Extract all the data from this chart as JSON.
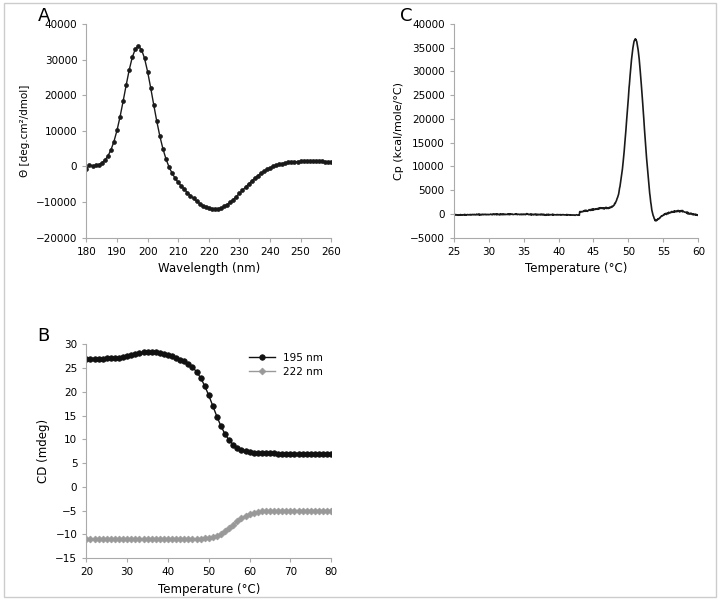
{
  "panel_A": {
    "label": "A",
    "xlabel": "Wavelength (nm)",
    "ylabel": "Θ [deg.cm²/dmol]",
    "xlim": [
      180,
      260
    ],
    "ylim": [
      -20000,
      40000
    ],
    "xticks": [
      180,
      190,
      200,
      210,
      220,
      230,
      240,
      250,
      260
    ],
    "yticks": [
      -20000,
      -10000,
      0,
      10000,
      20000,
      30000,
      40000
    ],
    "color": "#1a1a1a"
  },
  "panel_B": {
    "label": "B",
    "xlabel": "Temperature (°C)",
    "ylabel": "CD (mdeg)",
    "xlim": [
      20,
      80
    ],
    "ylim": [
      -15,
      30
    ],
    "xticks": [
      20,
      30,
      40,
      50,
      60,
      70,
      80
    ],
    "yticks": [
      -15,
      -10,
      -5,
      0,
      5,
      10,
      15,
      20,
      25,
      30
    ],
    "color_195": "#111111",
    "color_222": "#999999",
    "legend_195": "195 nm",
    "legend_222": "222 nm"
  },
  "panel_C": {
    "label": "C",
    "xlabel": "Temperature (°C)",
    "ylabel": "Cp (kcal/mole/°C)",
    "xlim": [
      25,
      60
    ],
    "ylim": [
      -5000,
      40000
    ],
    "xticks": [
      25,
      30,
      35,
      40,
      45,
      50,
      55,
      60
    ],
    "yticks": [
      -5000,
      0,
      5000,
      10000,
      15000,
      20000,
      25000,
      30000,
      35000,
      40000
    ],
    "color": "#1a1a1a"
  },
  "background_color": "#ffffff",
  "spine_color": "#aaaaaa",
  "border_color": "#cccccc"
}
